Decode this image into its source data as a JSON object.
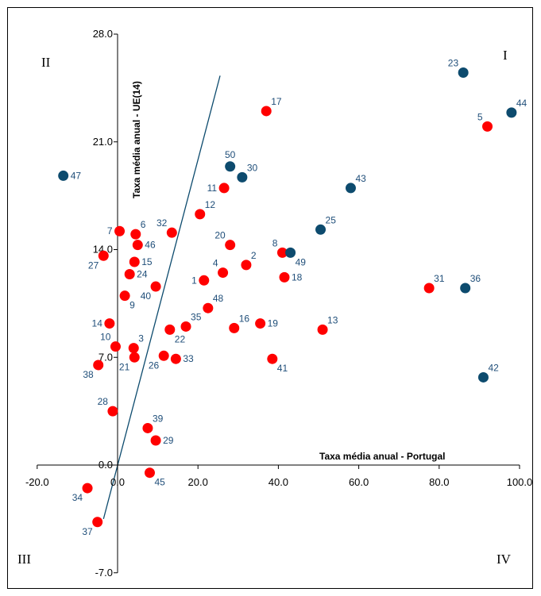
{
  "chart_data": {
    "type": "scatter",
    "xlabel": "Taxa média anual - Portugal",
    "ylabel": "Taxa média anual - UE(14)",
    "xlim": [
      -20,
      100
    ],
    "ylim": [
      -7,
      28
    ],
    "x_ticks": [
      "-20.0",
      "0.0",
      "20.0",
      "40.0",
      "60.0",
      "80.0",
      "100.0"
    ],
    "y_ticks": [
      "28.0",
      "21.0",
      "14.0",
      "7.0",
      "0.0",
      "-7.0"
    ],
    "quadrants": {
      "I": "I",
      "II": "II",
      "III": "III",
      "IV": "IV"
    },
    "colors": {
      "red": "#ff0000",
      "blue": "#0d4b6e",
      "label": "#1f4e79"
    },
    "reference_line": {
      "from": [
        -3.5,
        -3.5
      ],
      "to": [
        25.5,
        25.3
      ]
    },
    "points": [
      {
        "label": "1",
        "x": 21.5,
        "y": 12.0,
        "color": "red",
        "pos": "left"
      },
      {
        "label": "2",
        "x": 32.0,
        "y": 13.0,
        "color": "red",
        "pos": "upper-right"
      },
      {
        "label": "3",
        "x": 4.0,
        "y": 7.6,
        "color": "red",
        "pos": "upper-right"
      },
      {
        "label": "4",
        "x": 26.2,
        "y": 12.5,
        "color": "red",
        "pos": "upper-left"
      },
      {
        "label": "5",
        "x": 92.0,
        "y": 22.0,
        "color": "red",
        "pos": "upper-left"
      },
      {
        "label": "6",
        "x": 4.5,
        "y": 15.0,
        "color": "red",
        "pos": "upper-right"
      },
      {
        "label": "7",
        "x": 0.5,
        "y": 15.2,
        "color": "red",
        "pos": "left"
      },
      {
        "label": "8",
        "x": 41.0,
        "y": 13.8,
        "color": "red",
        "pos": "upper-left"
      },
      {
        "label": "9",
        "x": 1.8,
        "y": 11.0,
        "color": "red",
        "pos": "lower-right"
      },
      {
        "label": "10",
        "x": -0.5,
        "y": 7.7,
        "color": "red",
        "pos": "upper-left"
      },
      {
        "label": "11",
        "x": 26.5,
        "y": 18.0,
        "color": "red",
        "pos": "left"
      },
      {
        "label": "12",
        "x": 20.5,
        "y": 16.3,
        "color": "red",
        "pos": "upper-right"
      },
      {
        "label": "13",
        "x": 51.0,
        "y": 8.8,
        "color": "red",
        "pos": "upper-right"
      },
      {
        "label": "14",
        "x": -2.0,
        "y": 9.2,
        "color": "red",
        "pos": "left"
      },
      {
        "label": "15",
        "x": 4.2,
        "y": 13.2,
        "color": "red",
        "pos": "right"
      },
      {
        "label": "16",
        "x": 29.0,
        "y": 8.9,
        "color": "red",
        "pos": "upper-right"
      },
      {
        "label": "17",
        "x": 37.0,
        "y": 23.0,
        "color": "red",
        "pos": "upper-right"
      },
      {
        "label": "18",
        "x": 41.5,
        "y": 12.2,
        "color": "red",
        "pos": "right"
      },
      {
        "label": "19",
        "x": 35.5,
        "y": 9.2,
        "color": "red",
        "pos": "right"
      },
      {
        "label": "20",
        "x": 28.0,
        "y": 14.3,
        "color": "red",
        "pos": "upper-left"
      },
      {
        "label": "21",
        "x": 4.2,
        "y": 7.0,
        "color": "red",
        "pos": "lower-left"
      },
      {
        "label": "22",
        "x": 13.0,
        "y": 8.8,
        "color": "red",
        "pos": "lower-right"
      },
      {
        "label": "23",
        "x": 86.0,
        "y": 25.5,
        "color": "blue",
        "pos": "upper-left"
      },
      {
        "label": "24",
        "x": 3.0,
        "y": 12.4,
        "color": "red",
        "pos": "right"
      },
      {
        "label": "25",
        "x": 50.5,
        "y": 15.3,
        "color": "blue",
        "pos": "upper-right"
      },
      {
        "label": "26",
        "x": 11.5,
        "y": 7.1,
        "color": "red",
        "pos": "lower-left"
      },
      {
        "label": "27",
        "x": -3.5,
        "y": 13.6,
        "color": "red",
        "pos": "lower-left"
      },
      {
        "label": "28",
        "x": -1.2,
        "y": 3.5,
        "color": "red",
        "pos": "upper-left"
      },
      {
        "label": "29",
        "x": 9.5,
        "y": 1.6,
        "color": "red",
        "pos": "right"
      },
      {
        "label": "30",
        "x": 31.0,
        "y": 18.7,
        "color": "blue",
        "pos": "upper-right"
      },
      {
        "label": "31",
        "x": 77.5,
        "y": 11.5,
        "color": "red",
        "pos": "upper-right"
      },
      {
        "label": "32",
        "x": 13.5,
        "y": 15.1,
        "color": "red",
        "pos": "upper-left"
      },
      {
        "label": "33",
        "x": 14.5,
        "y": 6.9,
        "color": "red",
        "pos": "right"
      },
      {
        "label": "34",
        "x": -7.5,
        "y": -1.5,
        "color": "red",
        "pos": "lower-left"
      },
      {
        "label": "35",
        "x": 17.0,
        "y": 9.0,
        "color": "red",
        "pos": "upper-right"
      },
      {
        "label": "36",
        "x": 86.5,
        "y": 11.5,
        "color": "blue",
        "pos": "upper-right"
      },
      {
        "label": "37",
        "x": -5.0,
        "y": -3.7,
        "color": "red",
        "pos": "lower-left"
      },
      {
        "label": "38",
        "x": -4.8,
        "y": 6.5,
        "color": "red",
        "pos": "lower-left"
      },
      {
        "label": "39",
        "x": 7.5,
        "y": 2.4,
        "color": "red",
        "pos": "upper-right"
      },
      {
        "label": "40",
        "x": 9.5,
        "y": 11.6,
        "color": "red",
        "pos": "lower-left"
      },
      {
        "label": "41",
        "x": 38.5,
        "y": 6.9,
        "color": "red",
        "pos": "lower-right"
      },
      {
        "label": "42",
        "x": 91.0,
        "y": 5.7,
        "color": "blue",
        "pos": "upper-right"
      },
      {
        "label": "43",
        "x": 58.0,
        "y": 18.0,
        "color": "blue",
        "pos": "upper-right"
      },
      {
        "label": "44",
        "x": 98.0,
        "y": 22.9,
        "color": "blue",
        "pos": "upper-right"
      },
      {
        "label": "45",
        "x": 8.0,
        "y": -0.5,
        "color": "red",
        "pos": "lower-right"
      },
      {
        "label": "46",
        "x": 5.0,
        "y": 14.3,
        "color": "red",
        "pos": "right"
      },
      {
        "label": "47",
        "x": -13.5,
        "y": 18.8,
        "color": "blue",
        "pos": "right"
      },
      {
        "label": "48",
        "x": 22.5,
        "y": 10.2,
        "color": "red",
        "pos": "upper-right"
      },
      {
        "label": "49",
        "x": 43.0,
        "y": 13.8,
        "color": "blue",
        "pos": "lower-right"
      },
      {
        "label": "50",
        "x": 28.0,
        "y": 19.4,
        "color": "blue",
        "pos": "upper-center"
      }
    ]
  }
}
